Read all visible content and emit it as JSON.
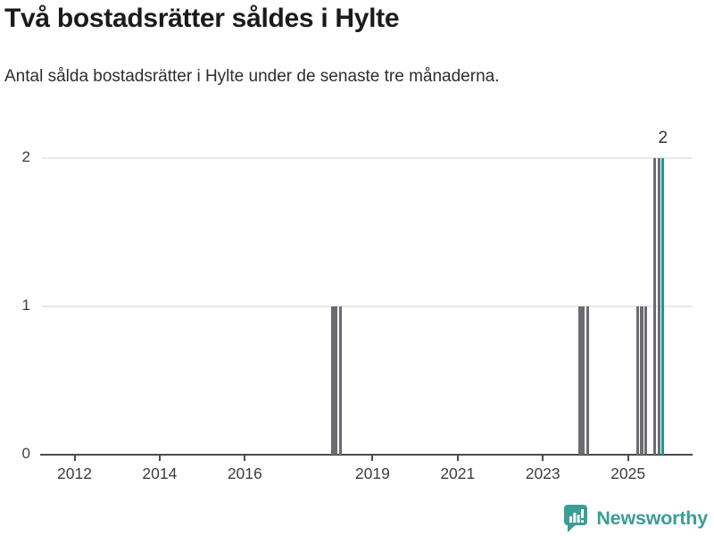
{
  "header": {
    "title": "Två bostadsrätter såldes i Hylte",
    "subtitle": "Antal sålda bostadsrätter i Hylte under de senaste tre månaderna."
  },
  "chart_data": {
    "type": "bar",
    "title": "Två bostadsrätter såldes i Hylte",
    "subtitle": "Antal sålda bostadsrätter i Hylte under de senaste tre månaderna.",
    "xlabel": "",
    "ylabel": "",
    "x_axis": {
      "min": 2011.2,
      "max": 2026.5,
      "ticks": [
        {
          "label": "2012",
          "value": 2012
        },
        {
          "label": "2014",
          "value": 2014
        },
        {
          "label": "2016",
          "value": 2016
        },
        {
          "label": "2019",
          "value": 2019
        },
        {
          "label": "2021",
          "value": 2021
        },
        {
          "label": "2023",
          "value": 2023
        },
        {
          "label": "2025",
          "value": 2025
        }
      ]
    },
    "y_axis": {
      "min": 0,
      "max": 2,
      "ticks": [
        {
          "label": "0",
          "value": 0
        },
        {
          "label": "1",
          "value": 1
        },
        {
          "label": "2",
          "value": 2
        }
      ]
    },
    "grid": "horizontal",
    "legend": "none",
    "bar_unit": "month",
    "bars": [
      {
        "x_year": 2018.03,
        "months": 2,
        "value": 1,
        "highlight": false
      },
      {
        "x_year": 2018.22,
        "months": 1,
        "value": 1,
        "highlight": false
      },
      {
        "x_year": 2023.84,
        "months": 2,
        "value": 1,
        "highlight": false
      },
      {
        "x_year": 2024.03,
        "months": 1,
        "value": 1,
        "highlight": false
      },
      {
        "x_year": 2025.2,
        "months": 1,
        "value": 1,
        "highlight": false
      },
      {
        "x_year": 2025.29,
        "months": 1,
        "value": 1,
        "highlight": false
      },
      {
        "x_year": 2025.38,
        "months": 1,
        "value": 1,
        "highlight": false
      },
      {
        "x_year": 2025.6,
        "months": 1,
        "value": 2,
        "highlight": false
      },
      {
        "x_year": 2025.7,
        "months": 1,
        "value": 2,
        "highlight": false
      },
      {
        "x_year": 2025.79,
        "months": 1,
        "value": 2,
        "highlight": true
      }
    ],
    "annotation": {
      "text": "2",
      "x_year": 2025.79,
      "value": 2
    },
    "colors": {
      "bar": "#6B6B72",
      "highlight": "#189A93",
      "grid": "#E8E8E8",
      "axis": "#4C4C4C"
    }
  },
  "branding": {
    "name": "Newsworthy",
    "color": "#3B9E96",
    "icon": "newsworthy-speech-bubble-bar-chart-icon"
  }
}
